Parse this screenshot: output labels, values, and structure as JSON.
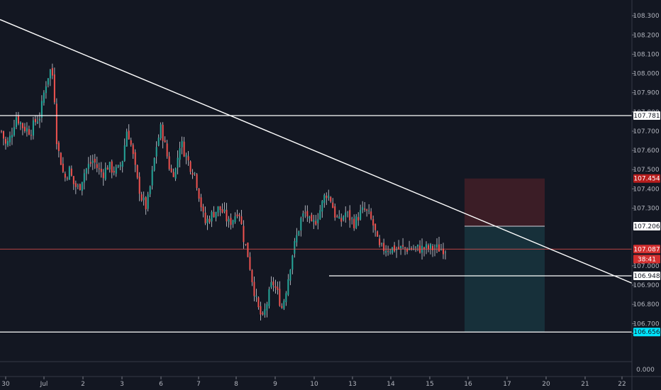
{
  "chart_data": {
    "type": "candlestick",
    "title": "",
    "x_ticks": [
      "30",
      "Jul",
      "2",
      "3",
      "6",
      "7",
      "8",
      "9",
      "10",
      "13",
      "14",
      "15",
      "16",
      "17",
      "20",
      "21",
      "22"
    ],
    "y_ticks": [
      "108.300",
      "108.200",
      "108.100",
      "108.000",
      "107.900",
      "107.800",
      "107.700",
      "107.600",
      "107.500",
      "107.400",
      "107.300",
      "107.000",
      "106.900",
      "106.800",
      "106.700",
      "106.650"
    ],
    "lower_axis_value": "0.000",
    "ylim": [
      106.62,
      108.33
    ],
    "price_path": {
      "description_days": [
        29.4,
        29.6,
        29.8,
        30.0,
        30.3,
        30.6,
        30.8,
        31.0,
        31.2,
        31.4,
        31.55,
        31.7,
        31.85,
        32.0,
        32.2,
        32.4,
        32.6,
        32.8,
        33.0,
        33.2,
        33.4,
        33.6,
        33.8,
        34.0,
        34.2,
        34.4,
        34.6,
        34.8,
        35.0,
        35.2,
        35.4,
        35.6,
        35.8,
        36.0,
        36.2,
        36.4,
        36.6,
        36.8,
        37.0,
        37.2,
        37.4,
        37.6,
        37.8,
        38.0,
        38.2,
        38.4,
        38.6,
        38.8,
        39.0,
        39.2,
        39.4,
        39.6,
        39.8,
        40.0,
        40.2,
        40.4,
        40.6,
        40.8,
        41.0,
        41.2,
        41.4,
        41.6,
        41.8,
        42.0,
        42.2,
        42.4,
        42.6,
        42.8,
        43.0,
        43.2,
        43.4,
        43.6,
        43.8,
        44.0,
        44.2,
        44.4,
        44.6,
        44.8,
        45.0,
        45.2,
        45.4,
        45.6,
        45.8,
        46.0,
        46.2,
        46.4,
        46.6,
        46.8,
        47.0,
        47.2,
        47.4,
        47.6,
        47.75
      ],
      "close": [
        107.7,
        107.62,
        107.68,
        107.78,
        107.72,
        107.7,
        107.75,
        107.78,
        107.93,
        108.02,
        107.98,
        107.62,
        107.55,
        107.45,
        107.5,
        107.42,
        107.4,
        107.48,
        107.52,
        107.55,
        107.5,
        107.48,
        107.52,
        107.5,
        107.49,
        107.55,
        107.72,
        107.6,
        107.45,
        107.35,
        107.3,
        107.45,
        107.62,
        107.72,
        107.6,
        107.48,
        107.5,
        107.65,
        107.58,
        107.52,
        107.48,
        107.35,
        107.22,
        107.25,
        107.28,
        107.3,
        107.27,
        107.22,
        107.25,
        107.3,
        107.15,
        107.05,
        106.9,
        106.78,
        106.72,
        106.82,
        106.92,
        106.86,
        106.78,
        106.9,
        107.05,
        107.15,
        107.25,
        107.28,
        107.2,
        107.24,
        107.3,
        107.38,
        107.35,
        107.26,
        107.22,
        107.28,
        107.25,
        107.22,
        107.27,
        107.29,
        107.26,
        107.2,
        107.09,
        107.09,
        107.09,
        107.09,
        107.09,
        107.09,
        107.09,
        107.09,
        107.09,
        107.09,
        107.09,
        107.09,
        107.09,
        107.09,
        107.09
      ]
    },
    "horizontal_levels": [
      107.781,
      106.948,
      106.656
    ],
    "trendline": {
      "start": [
        28.4,
        108.28
      ],
      "end": [
        47.75,
        106.91
      ]
    },
    "position_box": {
      "entry": 107.206,
      "stop": 107.454,
      "target": 106.656
    },
    "price_labels": [
      {
        "text": "107.781",
        "value": 107.781,
        "bg": "#ffffff",
        "fg": "#131722"
      },
      {
        "text": "107.454",
        "value": 107.454,
        "bg": "#b71c1c",
        "fg": "#ffffff"
      },
      {
        "text": "107.206",
        "value": 107.206,
        "bg": "#ffffff",
        "fg": "#131722"
      },
      {
        "text": "107.087",
        "value": 107.087,
        "bg": "#d32f2f",
        "fg": "#ffffff"
      },
      {
        "text": "38:41",
        "value": 107.035,
        "bg": "#d32f2f",
        "fg": "#ffffff"
      },
      {
        "text": "106.948",
        "value": 106.948,
        "bg": "#ffffff",
        "fg": "#131722"
      },
      {
        "text": "106.656",
        "value": 106.656,
        "bg": "#00e5ff",
        "fg": "#131722"
      }
    ],
    "colors": {
      "background": "#131722",
      "up": "#26a69a",
      "down": "#ef5350",
      "wick": "#d1d4dc",
      "lines": "#ffffff",
      "stop_zone": "#3b1d26",
      "target_zone": "#17303a",
      "current_price_line": "#ef5350"
    }
  }
}
